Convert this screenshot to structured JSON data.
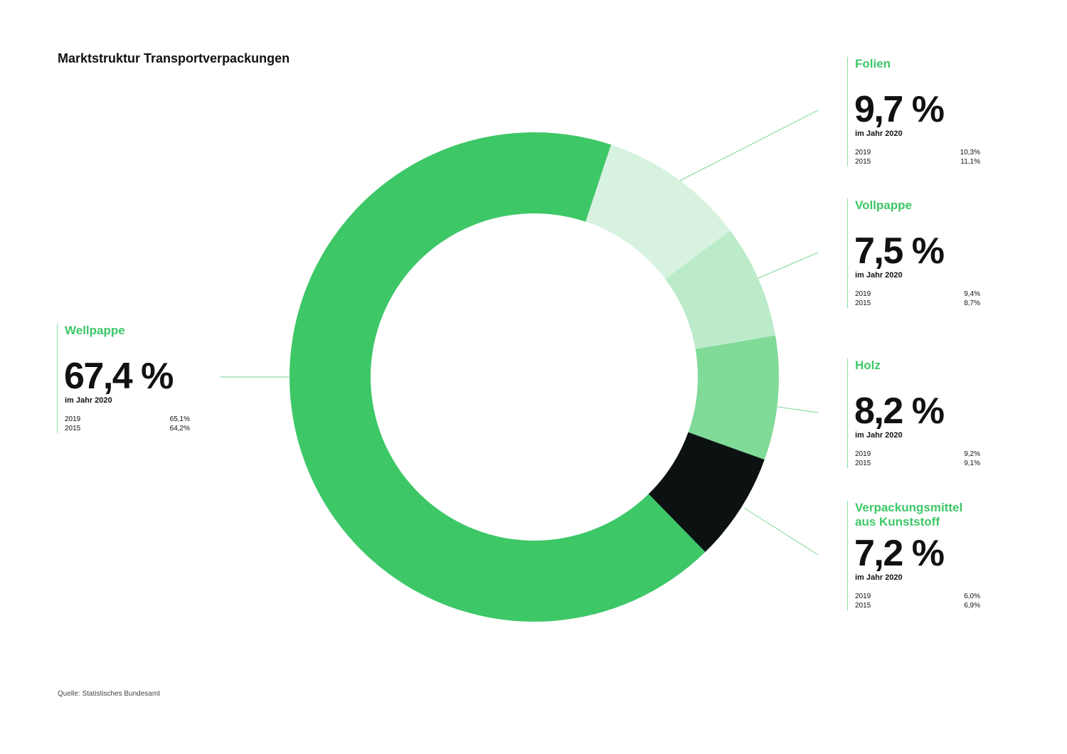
{
  "colors": {
    "label_accent": "#3dc767",
    "leader_line": "#7ad794"
  },
  "chart_data": {
    "type": "pie",
    "donut": true,
    "title": "Marktstruktur Transportverpackungen",
    "source": "Quelle: Statistisches Bundesamt",
    "slices": [
      {
        "label": "Folien",
        "value": 9.7,
        "value_label": "9,7 %",
        "color": "#d8f2e0",
        "caption": "im Jahr 2020",
        "history": [
          {
            "year": "2019",
            "value_label": "10,3%"
          },
          {
            "year": "2015",
            "value_label": "11,1%"
          }
        ]
      },
      {
        "label": "Vollpappe",
        "value": 7.5,
        "value_label": "7,5 %",
        "color": "#bcebca",
        "caption": "im Jahr 2020",
        "history": [
          {
            "year": "2019",
            "value_label": "9,4%"
          },
          {
            "year": "2015",
            "value_label": "8,7%"
          }
        ]
      },
      {
        "label": "Holz",
        "value": 8.2,
        "value_label": "8,2 %",
        "color": "#80da98",
        "caption": "im Jahr 2020",
        "history": [
          {
            "year": "2019",
            "value_label": "9,2%"
          },
          {
            "year": "2015",
            "value_label": "9,1%"
          }
        ]
      },
      {
        "label": "Verpackungsmittel aus Kunststoff",
        "value": 7.2,
        "value_label": "7,2 %",
        "color": "#0b1211",
        "caption": "im Jahr 2020",
        "history": [
          {
            "year": "2019",
            "value_label": "6,0%"
          },
          {
            "year": "2015",
            "value_label": "6,9%"
          }
        ]
      },
      {
        "label": "Wellpappe",
        "value": 67.4,
        "value_label": "67,4 %",
        "color": "#3dc767",
        "caption": "im Jahr 2020",
        "history": [
          {
            "year": "2019",
            "value_label": "65,1%"
          },
          {
            "year": "2015",
            "value_label": "64,2%"
          }
        ]
      }
    ]
  }
}
